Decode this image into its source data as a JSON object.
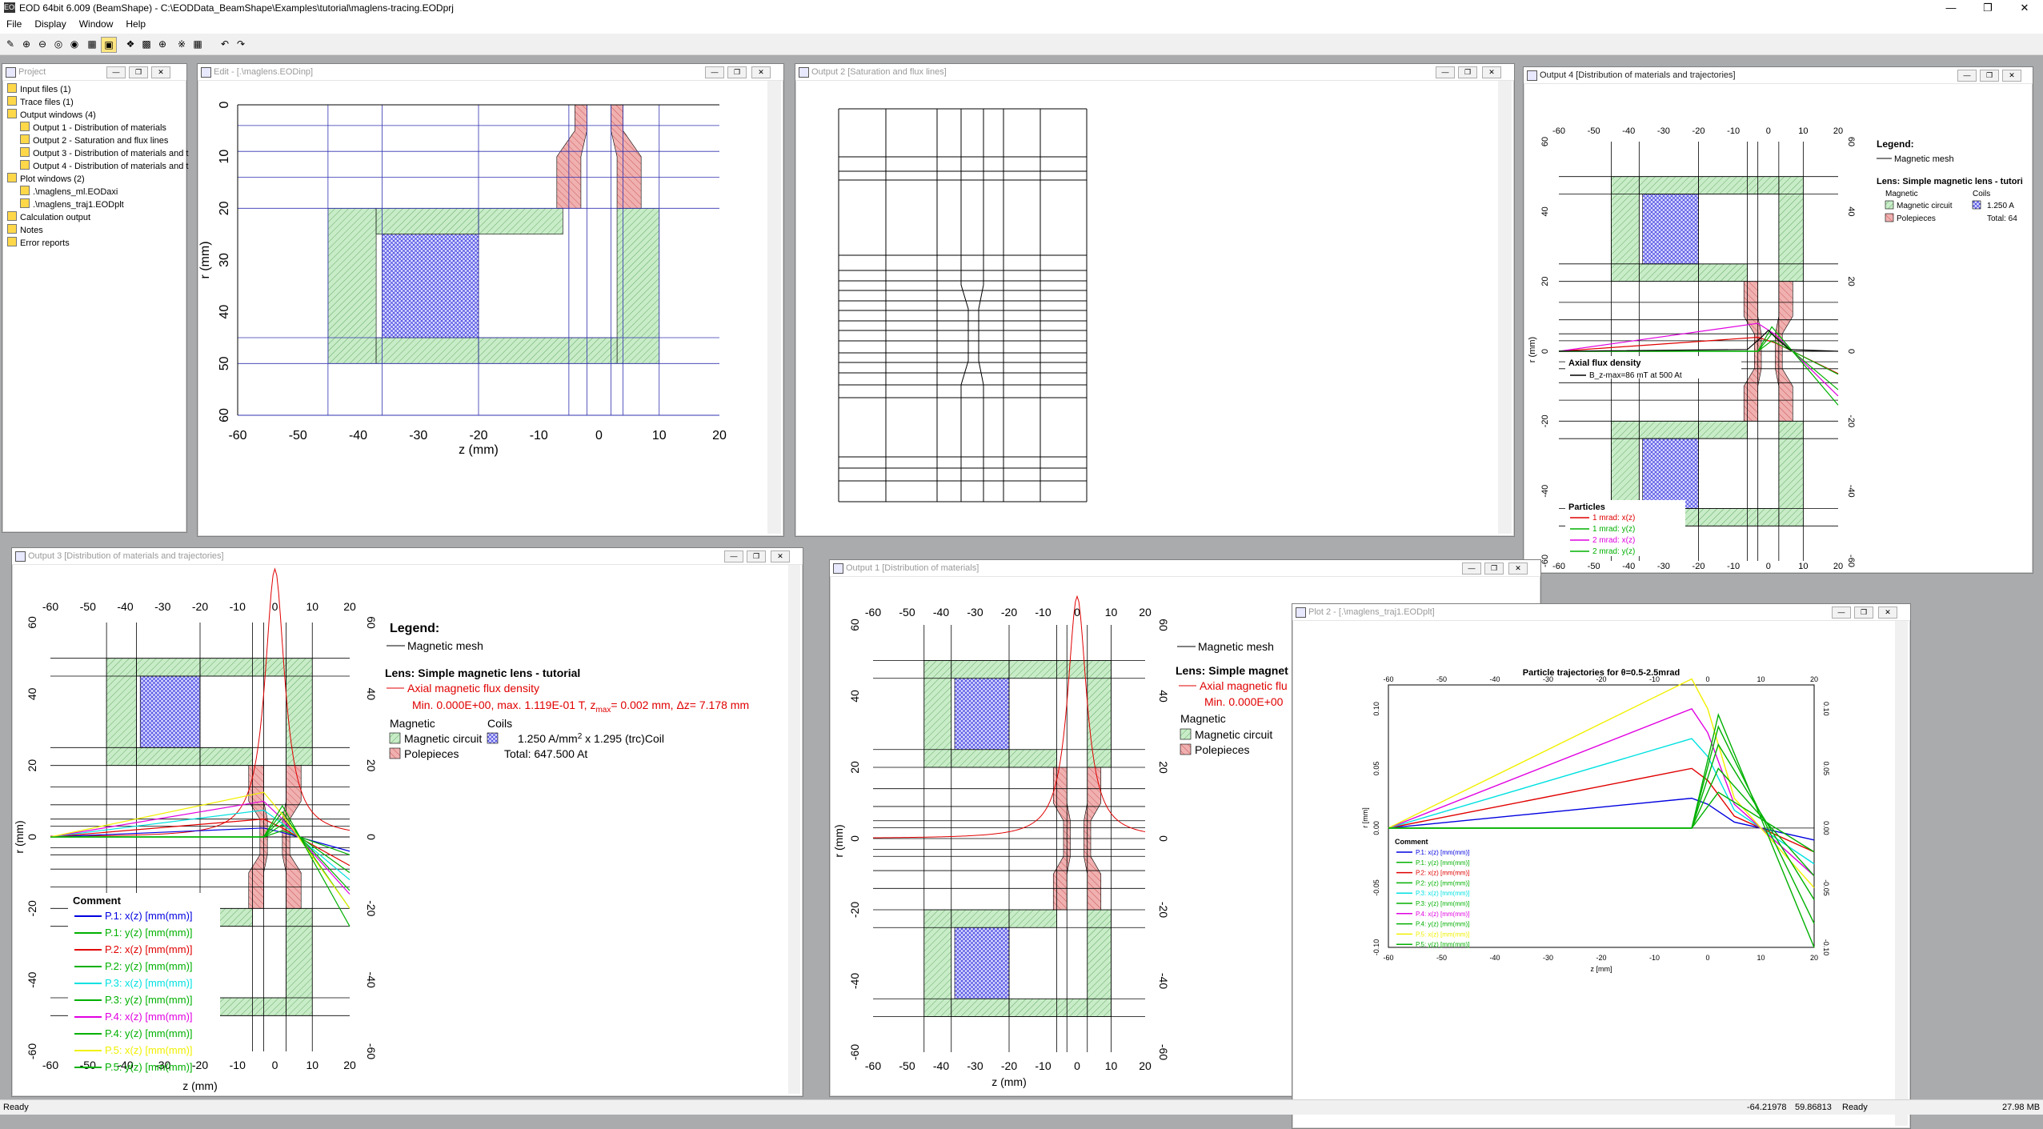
{
  "app": {
    "title": "EOD 64bit 6.009 (BeamShape) - C:\\EODData_BeamShape\\Examples\\tutorial\\maglens-tracing.EODprj",
    "icon": "EOD"
  },
  "menu": [
    "File",
    "Display",
    "Window",
    "Help"
  ],
  "project": {
    "title": "Project",
    "items": [
      {
        "label": "Input files (1)",
        "indent": 0
      },
      {
        "label": "Trace files (1)",
        "indent": 0
      },
      {
        "label": "Output windows (4)",
        "indent": 0
      },
      {
        "label": "Output 1 - Distribution of materials",
        "indent": 1
      },
      {
        "label": "Output 2 - Saturation and flux lines",
        "indent": 1
      },
      {
        "label": "Output 3 - Distribution of materials and t",
        "indent": 1
      },
      {
        "label": "Output 4 - Distribution of materials and t",
        "indent": 1
      },
      {
        "label": "Plot windows (2)",
        "indent": 0
      },
      {
        "label": ".\\maglens_ml.EODaxi",
        "indent": 1
      },
      {
        "label": ".\\maglens_traj1.EODplt",
        "indent": 1
      },
      {
        "label": "Calculation output",
        "indent": 0
      },
      {
        "label": "Notes",
        "indent": 0
      },
      {
        "label": "Error reports",
        "indent": 0
      }
    ]
  },
  "windows": {
    "edit": {
      "title": "Edit - [.\\maglens.EODinp]"
    },
    "out2": {
      "title": "Output 2 [Saturation and flux lines]"
    },
    "out4": {
      "title": "Output 4 [Distribution of materials and trajectories]"
    },
    "out3": {
      "title": "Output 3 [Distribution of materials and trajectories]"
    },
    "out1": {
      "title": "Output 1 [Distribution of materials]"
    },
    "plot2": {
      "title": "Plot 2 - [.\\maglens_traj1.EODplt]"
    }
  },
  "axes": {
    "z_ticks": [
      "-60",
      "-50",
      "-40",
      "-30",
      "-20",
      "-10",
      "0",
      "10",
      "20"
    ],
    "r_ticks_edit": [
      "0",
      "10",
      "20",
      "30",
      "40",
      "50",
      "60"
    ],
    "r_ticks_sym": [
      "60",
      "40",
      "20",
      "0",
      "-20",
      "-40",
      "-60"
    ],
    "xlabel": "z (mm)",
    "ylabel": "r (mm)"
  },
  "legend": {
    "heading": "Legend:",
    "mesh": "Magnetic mesh",
    "lens_full": "Lens: Simple magnetic lens - tutorial",
    "lens_short": "Lens: Simple magnetic lens - tutori",
    "lens_cut": "Lens: Simple magnet",
    "axial": "Axial magnetic flux density",
    "axial_cut": "Axial magnetic flu",
    "minmax": "Min.  0.000E+00, max.  1.119E-01 T, z",
    "zmax_sub": "max",
    "zmax_val": "=   0.002 mm, Δz=    7.178 mm",
    "min_cut": "Min.  0.000E+00",
    "magnetic": "Magnetic",
    "coils": "Coils",
    "circuit": "Magnetic circuit",
    "polepieces": "Polepieces",
    "coil_density": "1.250 A/mm",
    "coil_sup": "2",
    "coil_rest": " x    1.295 (trc)Coil",
    "coil_short": "1.250 A",
    "total": "Total:   647.500 At",
    "total_short": "Total:   64"
  },
  "out4": {
    "axial_title": "Axial flux density",
    "axial_entry": "B_z-max=86 mT at 500 At",
    "particles_title": "Particles",
    "particles": [
      {
        "label": "1 mrad: x(z)",
        "color": "#e00000"
      },
      {
        "label": "1 mrad: y(z)",
        "color": "#00b000"
      },
      {
        "label": "2 mrad: x(z)",
        "color": "#e000e0"
      },
      {
        "label": "2 mrad: y(z)",
        "color": "#00b000"
      }
    ]
  },
  "comment": {
    "title": "Comment",
    "entries": [
      {
        "label": "P.1: x(z) [mm(mm)]",
        "color": "#0000e0"
      },
      {
        "label": "P.1: y(z) [mm(mm)]",
        "color": "#00b000"
      },
      {
        "label": "P.2: x(z) [mm(mm)]",
        "color": "#e00000"
      },
      {
        "label": "P.2: y(z) [mm(mm)]",
        "color": "#00b000"
      },
      {
        "label": "P.3: x(z) [mm(mm)]",
        "color": "#00e0e0"
      },
      {
        "label": "P.3: y(z) [mm(mm)]",
        "color": "#00b000"
      },
      {
        "label": "P.4: x(z) [mm(mm)]",
        "color": "#e000e0"
      },
      {
        "label": "P.4: y(z) [mm(mm)]",
        "color": "#00b000"
      },
      {
        "label": "P.5: x(z) [mm(mm)]",
        "color": "#f0f000"
      },
      {
        "label": "P.5: y(z) [mm(mm)]",
        "color": "#00b000"
      }
    ]
  },
  "chart_data": {
    "type": "line",
    "title": "Particle trajectories for θ=0.5-2.5mrad",
    "xlabel": "z [mm]",
    "ylabel": "r [mm]",
    "x_ticks": [
      "-60",
      "-50",
      "-40",
      "-30",
      "-20",
      "-10",
      "0",
      "10",
      "20"
    ],
    "y_ticks": [
      "0.10",
      "0.05",
      "0.00",
      "-0.05",
      "-0.10"
    ],
    "xlim": [
      -60,
      20
    ],
    "ylim": [
      -0.1,
      0.12
    ],
    "series": [
      {
        "name": "P.1: x(z) [mm(mm)]",
        "color": "#0000e0",
        "x": [
          -60,
          -3,
          0,
          5,
          20
        ],
        "y": [
          0,
          0.025,
          0.02,
          0.005,
          -0.01
        ]
      },
      {
        "name": "P.2: x(z) [mm(mm)]",
        "color": "#e00000",
        "x": [
          -60,
          -3,
          0,
          5,
          20
        ],
        "y": [
          0,
          0.05,
          0.04,
          0.01,
          -0.02
        ]
      },
      {
        "name": "P.3: x(z) [mm(mm)]",
        "color": "#00e0e0",
        "x": [
          -60,
          -3,
          0,
          5,
          20
        ],
        "y": [
          0,
          0.075,
          0.06,
          0.015,
          -0.03
        ]
      },
      {
        "name": "P.4: x(z) [mm(mm)]",
        "color": "#e000e0",
        "x": [
          -60,
          -3,
          0,
          5,
          20
        ],
        "y": [
          0,
          0.1,
          0.08,
          0.02,
          -0.04
        ]
      },
      {
        "name": "P.5: x(z) [mm(mm)]",
        "color": "#f0f000",
        "x": [
          -60,
          -3,
          0,
          5,
          20
        ],
        "y": [
          0,
          0.125,
          0.1,
          0.025,
          -0.05
        ]
      },
      {
        "name": "P.1: y(z) [mm(mm)]",
        "color": "#00b000",
        "x": [
          -60,
          -3,
          2,
          20
        ],
        "y": [
          0,
          0.0,
          0.03,
          -0.02
        ]
      },
      {
        "name": "P.2: y(z) [mm(mm)]",
        "color": "#00b000",
        "x": [
          -60,
          -3,
          2,
          20
        ],
        "y": [
          0,
          0.0,
          0.05,
          -0.04
        ]
      },
      {
        "name": "P.3: y(z) [mm(mm)]",
        "color": "#00b000",
        "x": [
          -60,
          -3,
          2,
          20
        ],
        "y": [
          0,
          0.0,
          0.07,
          -0.06
        ]
      },
      {
        "name": "P.4: y(z) [mm(mm)]",
        "color": "#00b000",
        "x": [
          -60,
          -3,
          2,
          20
        ],
        "y": [
          0,
          0.0,
          0.085,
          -0.08
        ]
      },
      {
        "name": "P.5: y(z) [mm(mm)]",
        "color": "#00b000",
        "x": [
          -60,
          -3,
          2,
          20
        ],
        "y": [
          0,
          0.0,
          0.095,
          -0.1
        ]
      }
    ]
  },
  "status": {
    "left": "Ready",
    "x": "-64.21978",
    "y": "59.86813",
    "mid": "Ready",
    "mem": "27.98 MB"
  },
  "colors": {
    "circuit": "#c8ecc8",
    "coil": "#4040e0",
    "pole": "#f0b0b0",
    "edit_mesh": "#3030b0"
  }
}
